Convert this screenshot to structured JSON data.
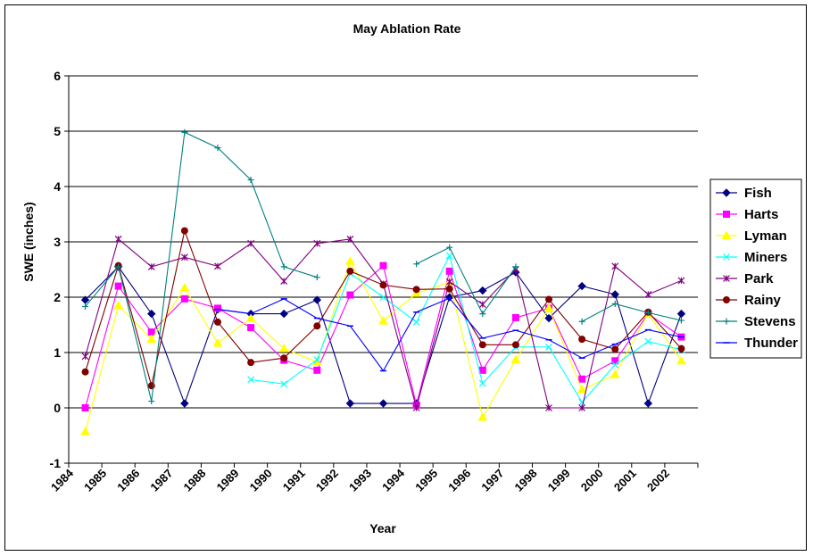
{
  "chart_data": {
    "type": "line",
    "title": "May Ablation Rate",
    "xlabel": "Year",
    "ylabel": "SWE (inches)",
    "ylim": [
      -1,
      6
    ],
    "yticks": [
      "-1",
      "0",
      "1",
      "2",
      "3",
      "4",
      "5",
      "6"
    ],
    "categories": [
      "1984",
      "1985",
      "1986",
      "1987",
      "1988",
      "1989",
      "1990",
      "1991",
      "1992",
      "1993",
      "1994",
      "1995",
      "1996",
      "1997",
      "1998",
      "1999",
      "2000",
      "2001",
      "2002"
    ],
    "grid": "horizontal",
    "legend_position": "right",
    "series": [
      {
        "name": "Fish",
        "color": "#000080",
        "marker": "diamond",
        "values": [
          1.95,
          2.55,
          1.7,
          0.08,
          1.78,
          1.7,
          1.7,
          1.95,
          0.08,
          0.08,
          0.08,
          2.0,
          2.12,
          2.45,
          1.62,
          2.2,
          2.05,
          0.08,
          1.7
        ]
      },
      {
        "name": "Harts",
        "color": "#FF00FF",
        "marker": "square",
        "values": [
          0.0,
          2.2,
          1.37,
          1.97,
          1.8,
          1.45,
          0.86,
          0.68,
          2.04,
          2.57,
          0.05,
          2.47,
          0.68,
          1.63,
          1.8,
          0.52,
          0.85,
          1.7,
          1.28
        ]
      },
      {
        "name": "Lyman",
        "color": "#FFFF00",
        "marker": "triangle",
        "values": [
          -0.43,
          1.85,
          1.24,
          2.17,
          1.17,
          1.62,
          1.07,
          0.83,
          2.65,
          1.57,
          2.07,
          2.27,
          -0.17,
          0.87,
          1.8,
          0.33,
          0.6,
          1.7,
          0.85
        ]
      },
      {
        "name": "Miners",
        "color": "#00FFFF",
        "marker": "x",
        "values": [
          null,
          null,
          null,
          null,
          null,
          0.51,
          0.43,
          0.87,
          2.43,
          2.0,
          1.55,
          2.75,
          0.44,
          1.1,
          1.1,
          0.1,
          0.78,
          1.2,
          1.05
        ]
      },
      {
        "name": "Park",
        "color": "#800080",
        "marker": "star",
        "values": [
          0.93,
          3.05,
          2.55,
          2.72,
          2.56,
          2.97,
          2.29,
          2.97,
          3.05,
          2.24,
          0.0,
          2.28,
          1.87,
          2.5,
          0.0,
          0.0,
          2.56,
          2.05,
          2.3
        ]
      },
      {
        "name": "Rainy",
        "color": "#800000",
        "marker": "circle",
        "values": [
          0.65,
          2.57,
          0.4,
          3.2,
          1.55,
          0.82,
          0.9,
          1.48,
          2.47,
          2.22,
          2.14,
          2.15,
          1.14,
          1.14,
          1.96,
          1.24,
          1.06,
          1.73,
          1.07
        ]
      },
      {
        "name": "Stevens",
        "color": "#008080",
        "marker": "plus",
        "values": [
          1.83,
          2.55,
          0.12,
          4.98,
          4.7,
          4.12,
          2.55,
          2.36,
          null,
          null,
          2.6,
          2.9,
          1.7,
          2.55,
          null,
          1.56,
          1.88,
          1.72,
          1.58
        ]
      },
      {
        "name": "Thunder",
        "color": "#0000FF",
        "marker": "dash",
        "values": [
          null,
          null,
          null,
          null,
          1.78,
          1.7,
          1.97,
          1.62,
          1.48,
          0.67,
          1.73,
          1.98,
          1.26,
          1.4,
          1.23,
          0.9,
          1.15,
          1.41,
          1.28
        ]
      }
    ]
  }
}
